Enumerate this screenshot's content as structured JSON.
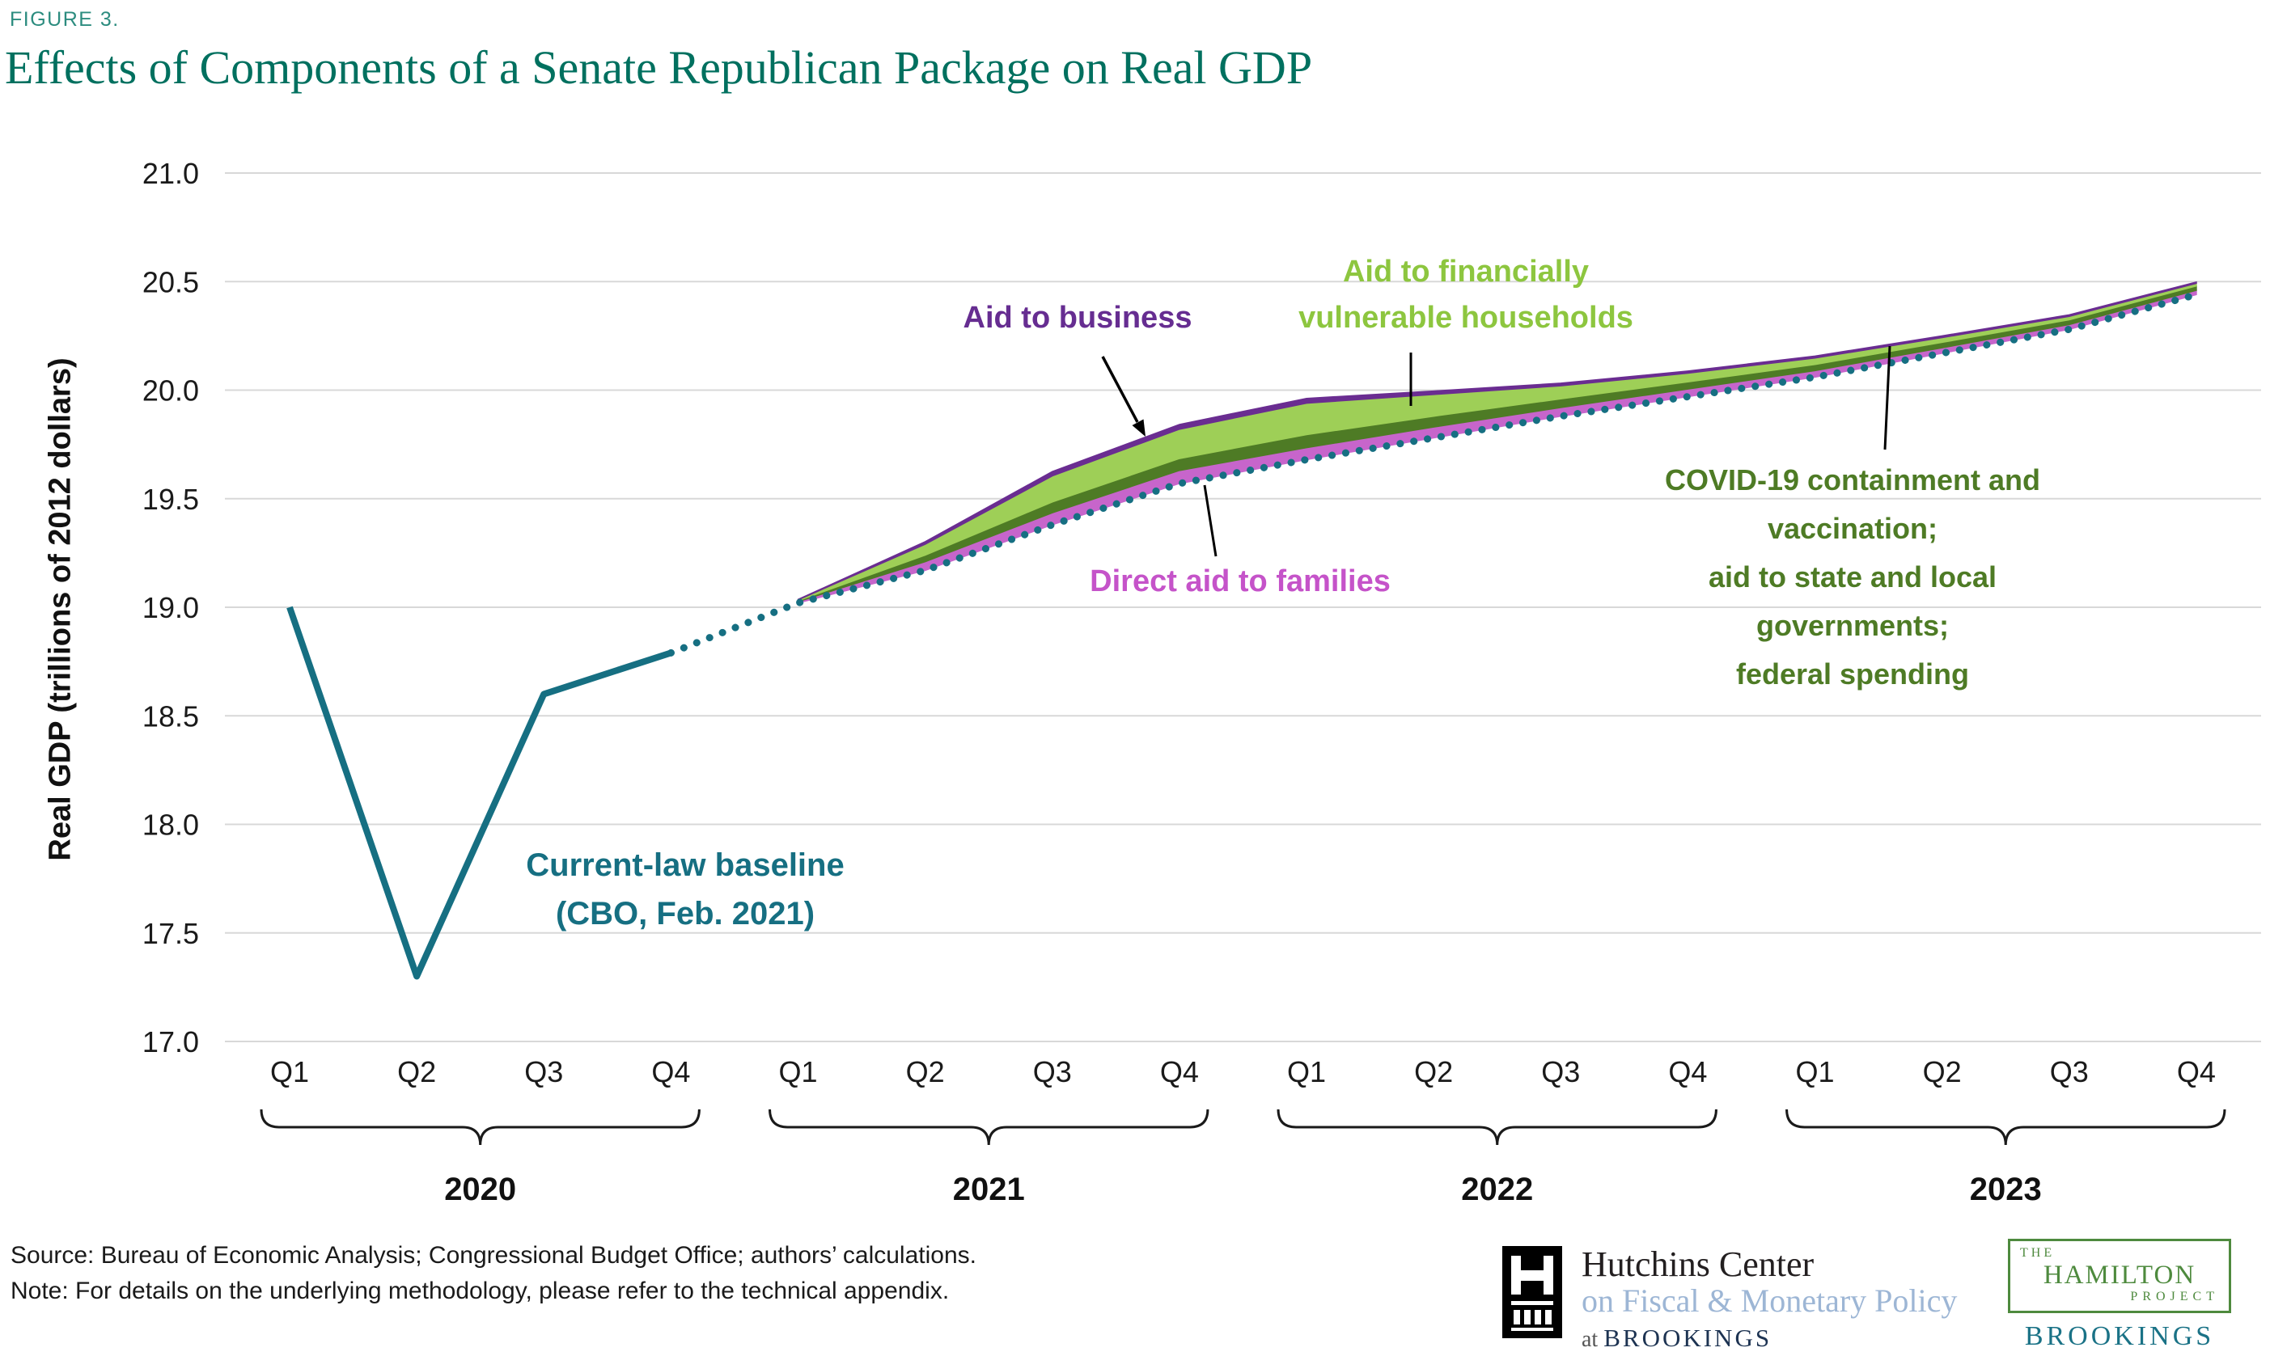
{
  "figure_label": "FIGURE 3.",
  "title": "Effects of Components of a Senate Republican Package on Real GDP",
  "annotations": {
    "aid_to_business": {
      "text": "Aid to business",
      "color": "#662d91"
    },
    "vulnerable_households": {
      "text": "Aid to financially\nvulnerable households",
      "color": "#8dc63f"
    },
    "direct_aid": {
      "text": "Direct aid to families",
      "color": "#c553c9"
    },
    "covid": {
      "text": "COVID-19 containment and vaccination;\naid to state and local governments;\nfederal spending",
      "color": "#4e7b25"
    },
    "baseline": {
      "text": "Current-law baseline\n(CBO, Feb. 2021)",
      "color": "#166f82"
    }
  },
  "footer": {
    "source": "Source: Bureau of Economic Analysis; Congressional Budget Office; authors’ calculations.",
    "note": "Note: For details on the underlying methodology, please refer to the technical appendix."
  },
  "logos": {
    "hutchins": {
      "line1": "Hutchins Center",
      "line2": "on Fiscal & Monetary Policy",
      "line3_prefix": "at ",
      "line3_name": "BROOKINGS"
    },
    "hamilton": {
      "the": "THE",
      "name": "HAMILTON",
      "project": "PROJECT",
      "brookings": "BROOKINGS"
    }
  },
  "chart_data": {
    "type": "area",
    "title": "Effects of Components of a Senate Republican Package on Real GDP",
    "ylabel": "Real GDP (trillions of 2012 dollars)",
    "xlabel": "",
    "ylim": [
      17.0,
      21.0
    ],
    "grid": true,
    "y_ticks": [
      17.0,
      17.5,
      18.0,
      18.5,
      19.0,
      19.5,
      20.0,
      20.5,
      21.0
    ],
    "x_labels": [
      "Q1",
      "Q2",
      "Q3",
      "Q4",
      "Q1",
      "Q2",
      "Q3",
      "Q4",
      "Q1",
      "Q2",
      "Q3",
      "Q4",
      "Q1",
      "Q2",
      "Q3",
      "Q4"
    ],
    "year_groups": [
      {
        "label": "2020",
        "start": 0,
        "end": 3
      },
      {
        "label": "2021",
        "start": 4,
        "end": 7
      },
      {
        "label": "2022",
        "start": 8,
        "end": 11
      },
      {
        "label": "2023",
        "start": 12,
        "end": 15
      }
    ],
    "baseline": {
      "name": "Current-law baseline (CBO, Feb. 2021)",
      "color": "#166f82",
      "solid_through_index": 3,
      "values": [
        19.0,
        17.3,
        18.6,
        18.79,
        19.02,
        19.17,
        19.38,
        19.57,
        19.68,
        19.78,
        19.88,
        19.97,
        20.06,
        20.17,
        20.28,
        20.44
      ]
    },
    "stacked_components": [
      {
        "name": "Direct aid to families",
        "color": "#c765cb",
        "values": [
          0,
          0,
          0,
          0,
          0.006,
          0.04,
          0.055,
          0.06,
          0.055,
          0.05,
          0.04,
          0.035,
          0.03,
          0.025,
          0.022,
          0.02
        ]
      },
      {
        "name": "COVID-19 containment and vaccination; aid to state and local governments; federal spending",
        "color": "#4e7b25",
        "values": [
          0,
          0,
          0,
          0,
          0.004,
          0.03,
          0.05,
          0.055,
          0.06,
          0.05,
          0.04,
          0.033,
          0.028,
          0.025,
          0.022,
          0.02
        ]
      },
      {
        "name": "Aid to financially vulnerable households",
        "color": "#9ecf57",
        "values": [
          0,
          0,
          0,
          0,
          0.004,
          0.05,
          0.12,
          0.135,
          0.145,
          0.1,
          0.06,
          0.04,
          0.03,
          0.022,
          0.016,
          0.012
        ]
      },
      {
        "name": "Aid to business",
        "color": "#6a2d91",
        "values": [
          0,
          0,
          0,
          0,
          0.002,
          0.012,
          0.02,
          0.022,
          0.022,
          0.016,
          0.012,
          0.01,
          0.009,
          0.008,
          0.007,
          0.006
        ]
      }
    ]
  }
}
